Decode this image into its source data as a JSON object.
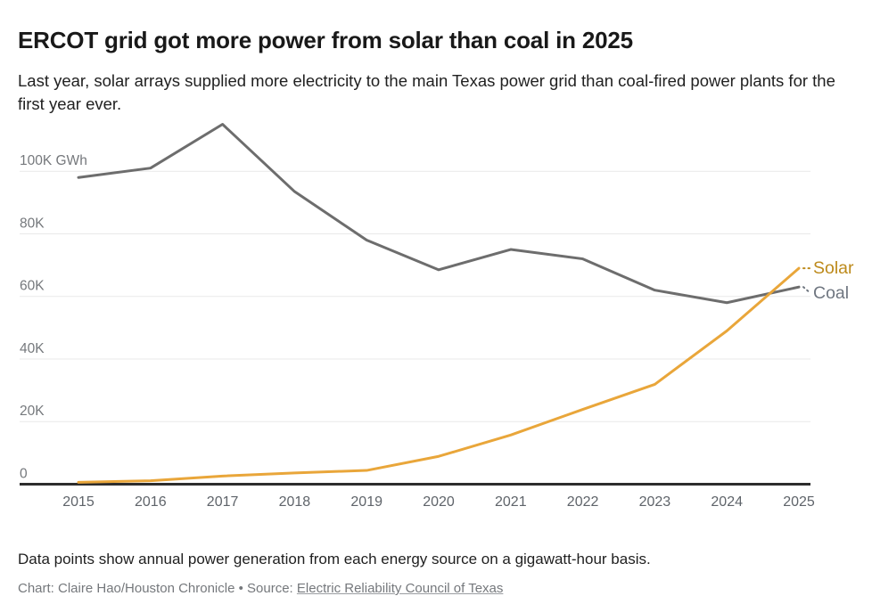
{
  "header": {
    "title": "ERCOT grid got more power from solar than coal in 2025",
    "subtitle": "Last year, solar arrays supplied more electricity to the main Texas power grid than coal-fired power plants for the first year ever."
  },
  "chart_data": {
    "type": "line",
    "title": "ERCOT grid got more power from solar than coal in 2025",
    "xlabel": "",
    "ylabel": "GWh",
    "unit": "thousand GWh (K GWh)",
    "x": [
      "2015",
      "2016",
      "2017",
      "2018",
      "2019",
      "2020",
      "2021",
      "2022",
      "2023",
      "2024",
      "2025"
    ],
    "series": [
      {
        "name": "Coal",
        "color": "#6d6d6d",
        "label_color": "#6f7680",
        "values": [
          98,
          101,
          115,
          93.5,
          78,
          68.5,
          75,
          72,
          62,
          58,
          63
        ]
      },
      {
        "name": "Solar",
        "color": "#e9a63a",
        "label_color": "#bd8a1b",
        "values": [
          0.6,
          1.1,
          2.6,
          3.6,
          4.4,
          8.9,
          15.7,
          23.9,
          31.9,
          49,
          69
        ]
      }
    ],
    "y_ticks": [
      {
        "value": 0,
        "label": "0"
      },
      {
        "value": 20,
        "label": "20K"
      },
      {
        "value": 40,
        "label": "40K"
      },
      {
        "value": 60,
        "label": "60K"
      },
      {
        "value": 80,
        "label": "80K"
      },
      {
        "value": 100,
        "label": "100K GWh"
      }
    ],
    "ylim": [
      0,
      118
    ],
    "grid": "horizontal",
    "legend_position": "direct labels at right end of lines"
  },
  "footer": {
    "note": "Data points show annual power generation from each energy source on a gigawatt-hour basis.",
    "credit_prefix": "Chart: Claire Hao/Houston Chronicle • Source: ",
    "source_link_text": "Electric Reliability Council of Texas"
  }
}
